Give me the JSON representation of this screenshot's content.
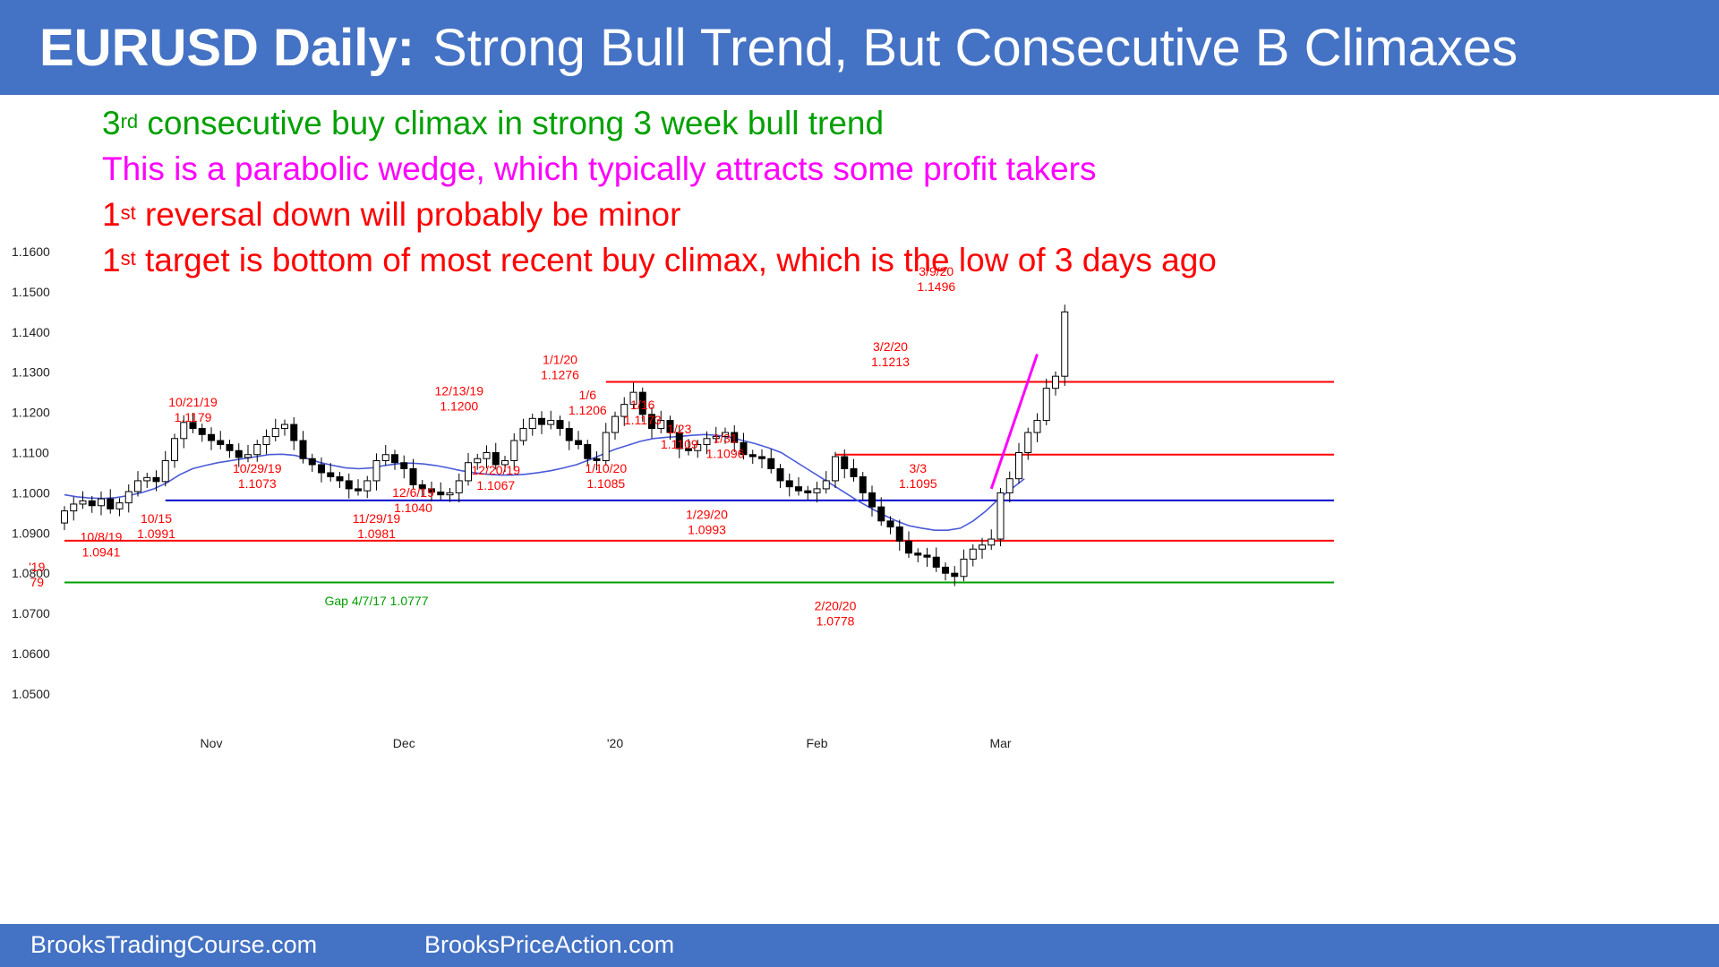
{
  "header": {
    "title_bold": "EURUSD Daily:",
    "title_rest": "Strong Bull Trend, But Consecutive B Climaxes",
    "color": "#4472c4"
  },
  "notes": [
    {
      "pre": "3",
      "sup": "rd",
      "text": " consecutive buy climax in strong 3 week bull trend",
      "color": "#00a000"
    },
    {
      "pre": "",
      "sup": "",
      "text": "This is a parabolic wedge, which typically attracts some profit takers",
      "color": "#ff00ff"
    },
    {
      "pre": "1",
      "sup": "st",
      "text": " reversal down will probably be minor",
      "color": "#ff0000"
    },
    {
      "pre": "1",
      "sup": "st",
      "text": " target is bottom of most recent buy climax, which is the low of 3 days ago",
      "color": "#ff0000"
    }
  ],
  "footer": {
    "left": "BrooksTradingCourse.com",
    "right": "BrooksPriceAction.com"
  },
  "chart_data": {
    "type": "candlestick",
    "title": "",
    "ylim": [
      1.045,
      1.165
    ],
    "y_ticks": [
      "1.1600",
      "1.1500",
      "1.1400",
      "1.1300",
      "1.1200",
      "1.1100",
      "1.1000",
      "1.0900",
      "1.0800",
      "1.0700",
      "1.0600",
      "1.0500"
    ],
    "y_tick_values": [
      1.16,
      1.15,
      1.14,
      1.13,
      1.12,
      1.11,
      1.1,
      1.09,
      1.08,
      1.07,
      1.06,
      1.05
    ],
    "x_ticks": [
      {
        "label": "Nov",
        "bar": 16
      },
      {
        "label": "Dec",
        "bar": 37
      },
      {
        "label": "'20",
        "bar": 60
      },
      {
        "label": "Feb",
        "bar": 82
      },
      {
        "label": "Mar",
        "bar": 102
      }
    ],
    "bar_count": 106,
    "closes": [
      1.0955,
      1.0972,
      1.098,
      1.0968,
      1.0985,
      1.096,
      1.0975,
      1.1003,
      1.103,
      1.1038,
      1.1028,
      1.108,
      1.1135,
      1.1175,
      1.116,
      1.1145,
      1.113,
      1.112,
      1.1105,
      1.1088,
      1.1095,
      1.112,
      1.114,
      1.116,
      1.117,
      1.113,
      1.1085,
      1.107,
      1.105,
      1.104,
      1.103,
      1.101,
      1.1005,
      1.103,
      1.108,
      1.1095,
      1.1075,
      1.106,
      1.102,
      1.101,
      1.1002,
      1.0995,
      1.1,
      1.103,
      1.1075,
      1.1085,
      1.11,
      1.107,
      1.108,
      1.113,
      1.116,
      1.1185,
      1.117,
      1.118,
      1.116,
      1.113,
      1.112,
      1.1085,
      1.108,
      1.115,
      1.119,
      1.122,
      1.125,
      1.1195,
      1.116,
      1.118,
      1.115,
      1.111,
      1.1105,
      1.112,
      1.1135,
      1.114,
      1.115,
      1.1125,
      1.1095,
      1.109,
      1.1085,
      1.106,
      1.103,
      1.1015,
      1.1005,
      1.1,
      1.101,
      1.103,
      1.109,
      1.106,
      1.104,
      1.1,
      1.0965,
      1.093,
      1.0915,
      1.088,
      1.085,
      1.0845,
      1.084,
      1.0815,
      1.08,
      1.0792,
      1.0835,
      1.086,
      1.087,
      1.0885,
      1.1,
      1.1035,
      1.11,
      1.115,
      1.118,
      1.126,
      1.129,
      1.145
    ],
    "ma": [
      1.0995,
      1.099,
      1.0987,
      1.0986,
      1.0988,
      1.0993,
      1.1,
      1.101,
      1.1025,
      1.1045,
      1.106,
      1.1068,
      1.1075,
      1.108,
      1.1085,
      1.109,
      1.1095,
      1.1096,
      1.1093,
      1.1085,
      1.1075,
      1.1068,
      1.1062,
      1.106,
      1.1062,
      1.1068,
      1.1072,
      1.1074,
      1.1072,
      1.1068,
      1.1062,
      1.1055,
      1.105,
      1.1046,
      1.1044,
      1.1044,
      1.1046,
      1.105,
      1.1055,
      1.1062,
      1.107,
      1.1082,
      1.1095,
      1.1108,
      1.1118,
      1.1128,
      1.1135,
      1.1138,
      1.114,
      1.1143,
      1.1145,
      1.1143,
      1.1138,
      1.113,
      1.1122,
      1.1112,
      1.11,
      1.108,
      1.106,
      1.104,
      1.102,
      1.1,
      1.098,
      1.0962,
      1.0945,
      1.093,
      1.0918,
      1.0912,
      1.0907,
      1.0907,
      1.0912,
      1.093,
      1.0955,
      1.0985,
      1.101,
      1.1035
    ],
    "ma_start_bar": 30,
    "horizontal_lines": [
      {
        "value": 1.1276,
        "color": "#ff0000",
        "from_bar": 59
      },
      {
        "value": 1.1095,
        "color": "#ff0000",
        "from_bar": 84
      },
      {
        "value": 1.0981,
        "color": "#0000cd",
        "from_bar": 11
      },
      {
        "value": 1.0881,
        "color": "#ff0000",
        "from_bar": 0
      },
      {
        "value": 1.0777,
        "color": "#00a000",
        "from_bar": 0
      }
    ],
    "wedge_line": {
      "from": [
        101,
        1.101
      ],
      "to": [
        106,
        1.1345
      ],
      "color": "#ff00ff"
    },
    "annotations": [
      {
        "lines": [
          "10/21/19",
          "1.1179"
        ],
        "bar": 14,
        "value": 1.1215,
        "color": "#ff0000"
      },
      {
        "lines": [
          "10/29/19",
          "1.1073"
        ],
        "bar": 21,
        "value": 1.105,
        "color": "#ff0000"
      },
      {
        "lines": [
          "10/15",
          "1.0991"
        ],
        "bar": 10,
        "value": 1.0925,
        "color": "#ff0000"
      },
      {
        "lines": [
          "10/8/19",
          "1.0941"
        ],
        "bar": 4,
        "value": 1.088,
        "color": "#ff0000"
      },
      {
        "lines": [
          "'19",
          "79"
        ],
        "bar": -3,
        "value": 1.0805,
        "color": "#ff0000"
      },
      {
        "lines": [
          "11/29/19",
          "1.0981"
        ],
        "bar": 34,
        "value": 1.0925,
        "color": "#ff0000"
      },
      {
        "lines": [
          "12/6/19",
          "1.1040"
        ],
        "bar": 38,
        "value": 1.099,
        "color": "#ff0000"
      },
      {
        "lines": [
          "12/13/19",
          "1.1200"
        ],
        "bar": 43,
        "value": 1.1243,
        "color": "#ff0000"
      },
      {
        "lines": [
          "12/20/19",
          "1.1067"
        ],
        "bar": 47,
        "value": 1.1045,
        "color": "#ff0000"
      },
      {
        "lines": [
          "1/1/20",
          "1.1276"
        ],
        "bar": 54,
        "value": 1.132,
        "color": "#ff0000"
      },
      {
        "lines": [
          "1/6",
          "1.1206"
        ],
        "bar": 57,
        "value": 1.1233,
        "color": "#ff0000"
      },
      {
        "lines": [
          "1/10/20",
          "1.1085"
        ],
        "bar": 59,
        "value": 1.105,
        "color": "#ff0000"
      },
      {
        "lines": [
          "1/16",
          "1.1173"
        ],
        "bar": 63,
        "value": 1.1208,
        "color": "#ff0000"
      },
      {
        "lines": [
          "1/23",
          "1.1109"
        ],
        "bar": 67,
        "value": 1.1148,
        "color": "#ff0000"
      },
      {
        "lines": [
          "1/31",
          "1.1096"
        ],
        "bar": 72,
        "value": 1.1125,
        "color": "#ff0000"
      },
      {
        "lines": [
          "1/29/20",
          "1.0993"
        ],
        "bar": 70,
        "value": 1.0935,
        "color": "#ff0000"
      },
      {
        "lines": [
          "2/20/20",
          "1.0778"
        ],
        "bar": 84,
        "value": 1.0708,
        "color": "#ff0000"
      },
      {
        "lines": [
          "3/2/20",
          "1.1213"
        ],
        "bar": 90,
        "value": 1.1353,
        "color": "#ff0000"
      },
      {
        "lines": [
          "3/3",
          "1.1095"
        ],
        "bar": 93,
        "value": 1.105,
        "color": "#ff0000"
      },
      {
        "lines": [
          "3/9/20",
          "1.1496"
        ],
        "bar": 95,
        "value": 1.154,
        "color": "#ff0000"
      }
    ],
    "gap_label": {
      "text": "Gap 4/7/17 1.0777",
      "bar": 34,
      "value": 1.076,
      "color": "#00a000"
    }
  }
}
